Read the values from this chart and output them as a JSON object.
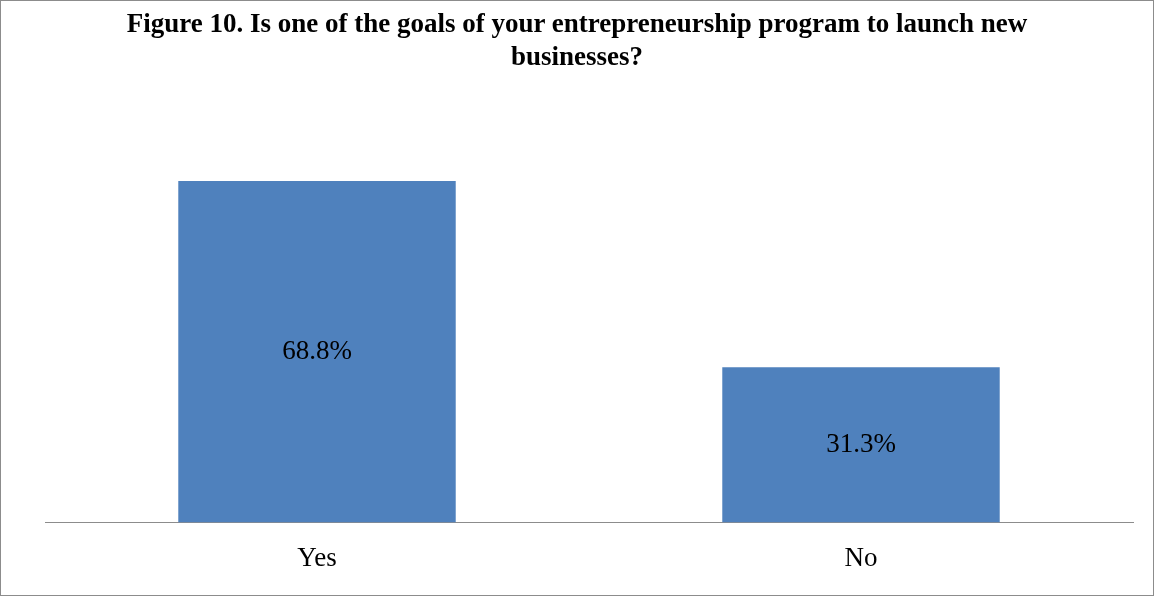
{
  "chart_data": {
    "type": "bar",
    "title": "Figure 10. Is one of the goals of your entrepreneurship program to launch new businesses?",
    "categories": [
      "Yes",
      "No"
    ],
    "values": [
      68.8,
      31.3
    ],
    "value_labels": [
      "68.8%",
      "31.3%"
    ],
    "color": "#4f81bd",
    "relative": false,
    "grid": false,
    "legend": false
  }
}
